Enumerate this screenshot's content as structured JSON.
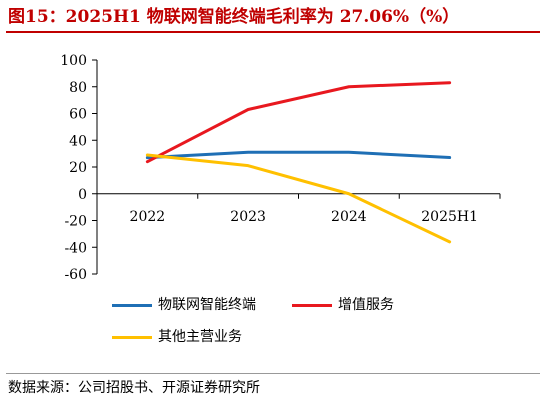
{
  "title": "图15：2025H1 物联网智能终端毛利率为 27.06%（%）",
  "source": "数据来源：公司招股书、开源证券研究所",
  "colors": {
    "title": "#c00000",
    "series": [
      "#1f6fb5",
      "#e8181f",
      "#ffc000"
    ]
  },
  "chart_data": {
    "type": "line",
    "title": "2025H1 物联网智能终端毛利率为 27.06%",
    "categories": [
      "2022",
      "2023",
      "2024",
      "2025H1"
    ],
    "ylim": [
      -60,
      100
    ],
    "yticks": [
      -60,
      -40,
      -20,
      0,
      20,
      40,
      60,
      80,
      100
    ],
    "grid": false,
    "legend_position": "bottom",
    "series": [
      {
        "name": "物联网智能终端",
        "values": [
          27,
          31,
          31,
          27.06
        ]
      },
      {
        "name": "增值服务",
        "values": [
          24,
          63,
          80,
          83
        ]
      },
      {
        "name": "其他主营业务",
        "values": [
          29,
          21,
          0,
          -36
        ]
      }
    ]
  }
}
